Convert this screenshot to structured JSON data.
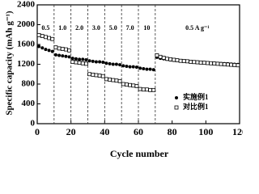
{
  "chart_data": {
    "type": "scatter",
    "xlabel": "Cycle number",
    "ylabel": "Specific capacity (mAh g⁻¹)",
    "x": [
      1,
      3,
      5,
      7,
      9,
      11,
      13,
      15,
      17,
      19,
      21,
      23,
      25,
      27,
      29,
      31,
      33,
      35,
      37,
      39,
      41,
      43,
      45,
      47,
      49,
      51,
      53,
      55,
      57,
      59,
      61,
      63,
      65,
      67,
      69,
      71,
      73,
      75,
      77,
      79,
      81,
      83,
      85,
      87,
      89,
      91,
      93,
      95,
      97,
      99,
      101,
      103,
      105,
      107,
      109,
      111,
      113,
      115,
      117,
      119
    ],
    "series": [
      {
        "name": "实施例1",
        "color": "#000000",
        "marker": "circle",
        "values": [
          1560,
          1530,
          1500,
          1480,
          1460,
          1390,
          1380,
          1370,
          1360,
          1350,
          1320,
          1310,
          1300,
          1300,
          1290,
          1270,
          1260,
          1250,
          1250,
          1240,
          1220,
          1210,
          1200,
          1200,
          1190,
          1170,
          1160,
          1150,
          1150,
          1140,
          1120,
          1110,
          1100,
          1100,
          1090,
          1340,
          1320,
          1310,
          1300,
          1290,
          1280,
          1275,
          1270,
          1265,
          1260,
          1255,
          1250,
          1245,
          1240,
          1235,
          1230,
          1225,
          1220,
          1218,
          1215,
          1212,
          1210,
          1205,
          1200,
          1195
        ]
      },
      {
        "name": "对比例1",
        "color": "#000000",
        "marker": "square",
        "values": [
          1790,
          1770,
          1750,
          1730,
          1710,
          1540,
          1520,
          1510,
          1500,
          1480,
          1250,
          1240,
          1230,
          1220,
          1210,
          1000,
          990,
          980,
          970,
          960,
          900,
          890,
          880,
          870,
          860,
          800,
          790,
          780,
          770,
          760,
          700,
          690,
          690,
          680,
          680,
          1380,
          1350,
          1330,
          1310,
          1300,
          1290,
          1280,
          1270,
          1265,
          1260,
          1250,
          1245,
          1240,
          1235,
          1230,
          1225,
          1220,
          1215,
          1210,
          1205,
          1200,
          1195,
          1190,
          1185,
          1180
        ]
      }
    ],
    "xlim": [
      0,
      120
    ],
    "xticks": [
      0,
      20,
      40,
      60,
      80,
      100,
      120
    ],
    "ylim": [
      0,
      2400
    ],
    "yticks": [
      0,
      400,
      800,
      1200,
      1600,
      2000,
      2400
    ],
    "vlines": [
      10,
      20,
      30,
      40,
      50,
      60,
      70
    ],
    "annotations": [
      "0.5",
      "1.0",
      "2.0",
      "3.0",
      "5.0",
      "7.0",
      "10",
      "0.5 A g⁻¹"
    ],
    "legend": "lower right"
  }
}
